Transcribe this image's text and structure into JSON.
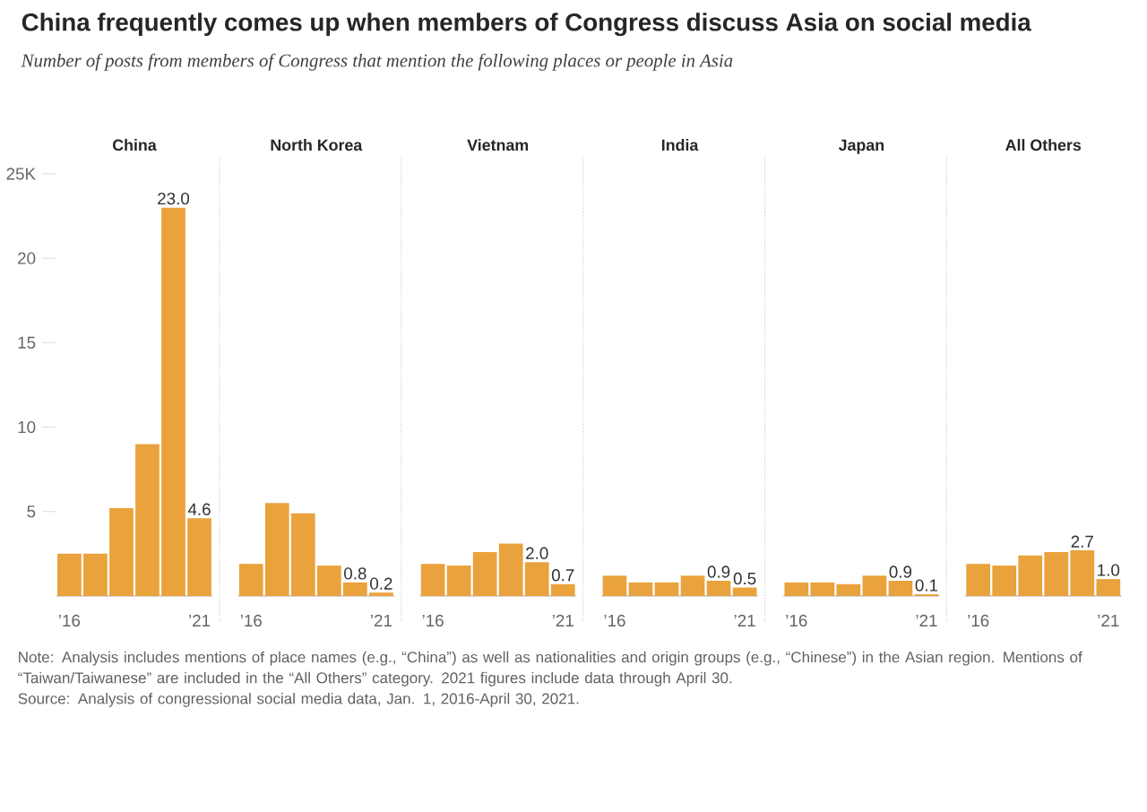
{
  "chart_data": [
    {
      "type": "other",
      "title": "China frequently comes up when members of Congress discuss Asia on social media",
      "subtitle": "Number of posts from members of Congress that mention the following places or people in Asia",
      "annotations": [
        "Note: Analysis includes mentions of place names (e.g., “China”) as well as nationalities and origin groups (e.g., “Chinese”) in the Asian region. Mentions of “Taiwan/Taiwanese” are included in the “All Others” category. 2021 figures include data through April 30.",
        "Source: Analysis of congressional social media data, Jan. 1, 2016-April 30, 2021."
      ]
    },
    {
      "type": "bar",
      "title": "China",
      "categories": [
        "’16",
        null,
        null,
        null,
        null,
        "’21"
      ],
      "values": [
        2.5,
        2.5,
        5.2,
        9.0,
        23.0,
        4.6
      ],
      "value_labels": [
        null,
        null,
        null,
        null,
        "23.0",
        "4.6"
      ],
      "color": "#eaa23c",
      "ylim": [
        0,
        25
      ],
      "yticks": [
        {
          "value": 5,
          "label": "5"
        },
        {
          "value": 10,
          "label": "10"
        },
        {
          "value": 15,
          "label": "15"
        },
        {
          "value": 20,
          "label": "20"
        },
        {
          "value": 25,
          "label": "25K"
        }
      ]
    },
    {
      "type": "bar",
      "title": "North Korea",
      "categories": [
        "’16",
        null,
        null,
        null,
        null,
        "’21"
      ],
      "values": [
        1.9,
        5.5,
        4.9,
        1.8,
        0.8,
        0.2
      ],
      "value_labels": [
        null,
        null,
        null,
        null,
        "0.8",
        "0.2"
      ],
      "color": "#eaa23c",
      "ylim": [
        0,
        25
      ],
      "tick_labels": "x"
    },
    {
      "type": "bar",
      "title": "Vietnam",
      "categories": [
        "’16",
        null,
        null,
        null,
        null,
        "’21"
      ],
      "values": [
        1.9,
        1.8,
        2.6,
        3.1,
        2.0,
        0.7
      ],
      "value_labels": [
        null,
        null,
        null,
        null,
        "2.0",
        "0.7"
      ],
      "color": "#eaa23c",
      "ylim": [
        0,
        25
      ],
      "tick_labels": "x"
    },
    {
      "type": "bar",
      "title": "India",
      "categories": [
        "’16",
        null,
        null,
        null,
        null,
        "’21"
      ],
      "values": [
        1.2,
        0.8,
        0.8,
        1.2,
        0.9,
        0.5
      ],
      "value_labels": [
        null,
        null,
        null,
        null,
        "0.9",
        "0.5"
      ],
      "color": "#eaa23c",
      "ylim": [
        0,
        25
      ],
      "tick_labels": "x"
    },
    {
      "type": "bar",
      "title": "Japan",
      "categories": [
        "’16",
        null,
        null,
        null,
        null,
        "’21"
      ],
      "values": [
        0.8,
        0.8,
        0.7,
        1.2,
        0.9,
        0.1
      ],
      "value_labels": [
        null,
        null,
        null,
        null,
        "0.9",
        "0.1"
      ],
      "color": "#eaa23c",
      "ylim": [
        0,
        25
      ],
      "tick_labels": "x"
    },
    {
      "type": "bar",
      "title": "All Others",
      "categories": [
        "’16",
        null,
        null,
        null,
        null,
        "’21"
      ],
      "values": [
        1.9,
        1.8,
        2.4,
        2.6,
        2.7,
        1.0
      ],
      "value_labels": [
        null,
        null,
        null,
        null,
        "2.7",
        "1.0"
      ],
      "color": "#eaa23c",
      "ylim": [
        0,
        25
      ],
      "tick_labels": "x"
    }
  ]
}
